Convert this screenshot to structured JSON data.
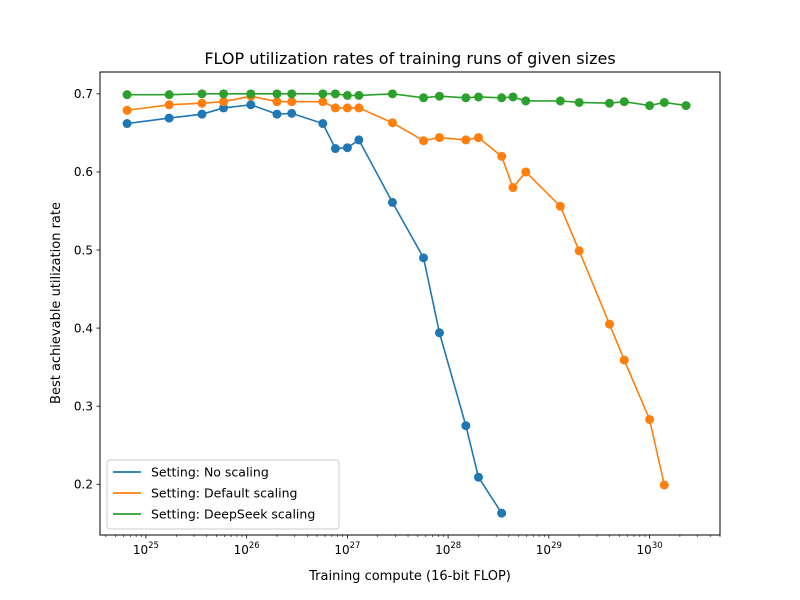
{
  "chart_data": {
    "type": "line",
    "title": "FLOP utilization rates of training runs of given sizes",
    "xlabel": "Training compute (16-bit FLOP)",
    "ylabel": "Best achievable utilization rate",
    "x_scale": "log",
    "xlim": [
      3.5e+24,
      5e+30
    ],
    "ylim": [
      0.135,
      0.728
    ],
    "x_ticks": [
      {
        "value": 1e+25,
        "base": "10",
        "exp": "25"
      },
      {
        "value": 1e+26,
        "base": "10",
        "exp": "26"
      },
      {
        "value": 1e+27,
        "base": "10",
        "exp": "27"
      },
      {
        "value": 1e+28,
        "base": "10",
        "exp": "28"
      },
      {
        "value": 1e+29,
        "base": "10",
        "exp": "29"
      },
      {
        "value": 1e+30,
        "base": "10",
        "exp": "30"
      }
    ],
    "y_ticks": [
      {
        "value": 0.2,
        "label": "0.2"
      },
      {
        "value": 0.3,
        "label": "0.3"
      },
      {
        "value": 0.4,
        "label": "0.4"
      },
      {
        "value": 0.5,
        "label": "0.5"
      },
      {
        "value": 0.6,
        "label": "0.6"
      },
      {
        "value": 0.7,
        "label": "0.7"
      }
    ],
    "grid": false,
    "legend_position": "lower-left",
    "series": [
      {
        "name": "Setting: No scaling",
        "color": "#1f77b4",
        "points": [
          [
            6.5e+24,
            0.662
          ],
          [
            1.7e+25,
            0.669
          ],
          [
            3.6e+25,
            0.674
          ],
          [
            5.9e+25,
            0.682
          ],
          [
            1.1e+26,
            0.686
          ],
          [
            2e+26,
            0.674
          ],
          [
            2.8e+26,
            0.675
          ],
          [
            5.7e+26,
            0.662
          ],
          [
            7.6e+26,
            0.63
          ],
          [
            1e+27,
            0.631
          ],
          [
            1.3e+27,
            0.641
          ],
          [
            2.8e+27,
            0.561
          ],
          [
            5.7e+27,
            0.49
          ],
          [
            8.2e+27,
            0.394
          ],
          [
            1.5e+28,
            0.275
          ],
          [
            2e+28,
            0.209
          ],
          [
            3.4e+28,
            0.163
          ]
        ]
      },
      {
        "name": "Setting: Default scaling",
        "color": "#ff7f0e",
        "points": [
          [
            6.5e+24,
            0.679
          ],
          [
            1.7e+25,
            0.686
          ],
          [
            3.6e+25,
            0.688
          ],
          [
            5.9e+25,
            0.69
          ],
          [
            1.1e+26,
            0.697
          ],
          [
            2e+26,
            0.69
          ],
          [
            2.8e+26,
            0.69
          ],
          [
            5.7e+26,
            0.69
          ],
          [
            7.6e+26,
            0.682
          ],
          [
            1e+27,
            0.682
          ],
          [
            1.3e+27,
            0.682
          ],
          [
            2.8e+27,
            0.663
          ],
          [
            5.7e+27,
            0.64
          ],
          [
            8.2e+27,
            0.644
          ],
          [
            1.5e+28,
            0.641
          ],
          [
            2e+28,
            0.644
          ],
          [
            3.4e+28,
            0.62
          ],
          [
            4.4e+28,
            0.58
          ],
          [
            5.9e+28,
            0.6
          ],
          [
            1.3e+29,
            0.556
          ],
          [
            2e+29,
            0.499
          ],
          [
            4e+29,
            0.405
          ],
          [
            5.6e+29,
            0.359
          ],
          [
            1e+30,
            0.283
          ],
          [
            1.4e+30,
            0.199
          ]
        ]
      },
      {
        "name": "Setting: DeepSeek scaling",
        "color": "#2ca02c",
        "points": [
          [
            6.5e+24,
            0.699
          ],
          [
            1.7e+25,
            0.699
          ],
          [
            3.6e+25,
            0.7
          ],
          [
            5.9e+25,
            0.7
          ],
          [
            1.1e+26,
            0.7
          ],
          [
            2e+26,
            0.7
          ],
          [
            2.8e+26,
            0.7
          ],
          [
            5.7e+26,
            0.7
          ],
          [
            7.6e+26,
            0.7
          ],
          [
            1e+27,
            0.698
          ],
          [
            1.3e+27,
            0.698
          ],
          [
            2.8e+27,
            0.7
          ],
          [
            5.7e+27,
            0.695
          ],
          [
            8.2e+27,
            0.697
          ],
          [
            1.5e+28,
            0.695
          ],
          [
            2e+28,
            0.696
          ],
          [
            3.4e+28,
            0.695
          ],
          [
            4.4e+28,
            0.696
          ],
          [
            5.9e+28,
            0.691
          ],
          [
            1.3e+29,
            0.691
          ],
          [
            2e+29,
            0.689
          ],
          [
            4e+29,
            0.688
          ],
          [
            5.6e+29,
            0.69
          ],
          [
            1e+30,
            0.685
          ],
          [
            1.4e+30,
            0.689
          ],
          [
            2.3e+30,
            0.685
          ]
        ]
      }
    ]
  }
}
